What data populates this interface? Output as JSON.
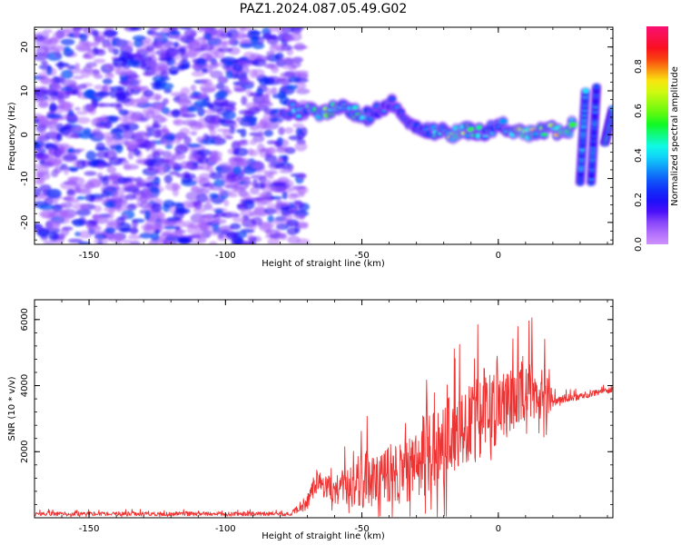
{
  "title": "PAZ1.2024.087.05.49.G02",
  "chart_data": [
    {
      "type": "heatmap",
      "xlabel": "Height of straight line (km)",
      "ylabel": "Frequency (Hz)",
      "xlim": [
        -170,
        42
      ],
      "ylim": [
        -25,
        24.5
      ],
      "x_ticks": [
        -150,
        -100,
        -50,
        0
      ],
      "x_tick_labels": [
        "-150",
        "-100",
        "-50",
        "0"
      ],
      "y_ticks": [
        -20,
        -10,
        0,
        10,
        20
      ],
      "y_tick_labels": [
        "-20",
        "-10",
        "0",
        "10",
        "20"
      ],
      "colorbar": {
        "label": "Normalized spectral amplitude",
        "range": [
          0.0,
          0.98
        ],
        "ticks": [
          0.0,
          0.2,
          0.4,
          0.6,
          0.8
        ],
        "tick_labels": [
          "0.0",
          "0.2",
          "0.4",
          "0.6",
          "0.8"
        ],
        "colormap": "gist_rainbow_r"
      },
      "noise_region": {
        "x_range": [
          -170,
          -74
        ],
        "frequency_range": [
          -25,
          24.5
        ],
        "amplitude_range": [
          0.05,
          0.3
        ]
      },
      "ridge": [
        {
          "x": -78,
          "f": 5.5,
          "a": 0.3
        },
        {
          "x": -72,
          "f": 5.5,
          "a": 0.4
        },
        {
          "x": -65,
          "f": 4.5,
          "a": 0.6
        },
        {
          "x": -58,
          "f": 6.5,
          "a": 0.45
        },
        {
          "x": -52,
          "f": 5.0,
          "a": 0.5
        },
        {
          "x": -47,
          "f": 4.0,
          "a": 0.35
        },
        {
          "x": -43,
          "f": 6.0,
          "a": 0.3
        },
        {
          "x": -38,
          "f": 7.5,
          "a": 0.3
        },
        {
          "x": -34,
          "f": 3.5,
          "a": 0.3
        },
        {
          "x": -30,
          "f": 1.0,
          "a": 0.35
        },
        {
          "x": -25,
          "f": 0.5,
          "a": 0.45
        },
        {
          "x": -20,
          "f": 0.5,
          "a": 0.45
        },
        {
          "x": -15,
          "f": 0.0,
          "a": 0.75
        },
        {
          "x": -10,
          "f": 1.0,
          "a": 0.5
        },
        {
          "x": -5,
          "f": 0.5,
          "a": 0.4
        },
        {
          "x": 0,
          "f": 2.5,
          "a": 0.4
        },
        {
          "x": 5,
          "f": 1.0,
          "a": 0.5
        },
        {
          "x": 10,
          "f": 0.5,
          "a": 0.75
        },
        {
          "x": 15,
          "f": 1.0,
          "a": 0.55
        },
        {
          "x": 20,
          "f": 1.0,
          "a": 0.6
        },
        {
          "x": 25,
          "f": 1.0,
          "a": 0.75
        },
        {
          "x": 28,
          "f": 3.0,
          "a": 0.5
        }
      ],
      "vertical_streaks": [
        {
          "x_start": 30,
          "f_start": -11,
          "x_end": 32,
          "f_end": 10,
          "a": 0.35
        },
        {
          "x_start": 34,
          "f_start": -11,
          "x_end": 36,
          "f_end": 11,
          "a": 0.3
        },
        {
          "x_start": 39,
          "f_start": -2,
          "x_end": 42,
          "f_end": 6,
          "a": 0.45
        }
      ]
    },
    {
      "type": "line",
      "xlabel": "Height of straight line (km)",
      "ylabel": "SNR (10 * v/v)",
      "xlim": [
        -170,
        42
      ],
      "ylim": [
        0,
        6600
      ],
      "x_ticks": [
        -150,
        -100,
        -50,
        0
      ],
      "x_tick_labels": [
        "-150",
        "-100",
        "-50",
        "0"
      ],
      "y_ticks": [
        2000,
        4000,
        6000
      ],
      "y_tick_labels": [
        "2000",
        "4000",
        "6000"
      ],
      "series": [
        {
          "color": "#ee3333",
          "envelope": [
            {
              "x": -170,
              "base": 100,
              "jitter": 150
            },
            {
              "x": -76,
              "base": 100,
              "jitter": 150
            },
            {
              "x": -70,
              "base": 400,
              "jitter": 600
            },
            {
              "x": -67,
              "base": 1000,
              "jitter": 900
            },
            {
              "x": -60,
              "base": 700,
              "jitter": 1000
            },
            {
              "x": -50,
              "base": 900,
              "jitter": 2200
            },
            {
              "x": -40,
              "base": 1000,
              "jitter": 2200
            },
            {
              "x": -30,
              "base": 1200,
              "jitter": 2500
            },
            {
              "x": -25,
              "base": 1500,
              "jitter": 2800
            },
            {
              "x": -20,
              "base": 2000,
              "jitter": 4500
            },
            {
              "x": -15,
              "base": 2300,
              "jitter": 3000
            },
            {
              "x": -10,
              "base": 2500,
              "jitter": 3000
            },
            {
              "x": -5,
              "base": 2700,
              "jitter": 3500
            },
            {
              "x": 0,
              "base": 3000,
              "jitter": 2500
            },
            {
              "x": 10,
              "base": 3500,
              "jitter": 2500
            },
            {
              "x": 18,
              "base": 3600,
              "jitter": 2300
            },
            {
              "x": 20,
              "base": 3500,
              "jitter": 400
            },
            {
              "x": 30,
              "base": 3650,
              "jitter": 250
            },
            {
              "x": 42,
              "base": 3850,
              "jitter": 200
            }
          ]
        }
      ]
    }
  ]
}
